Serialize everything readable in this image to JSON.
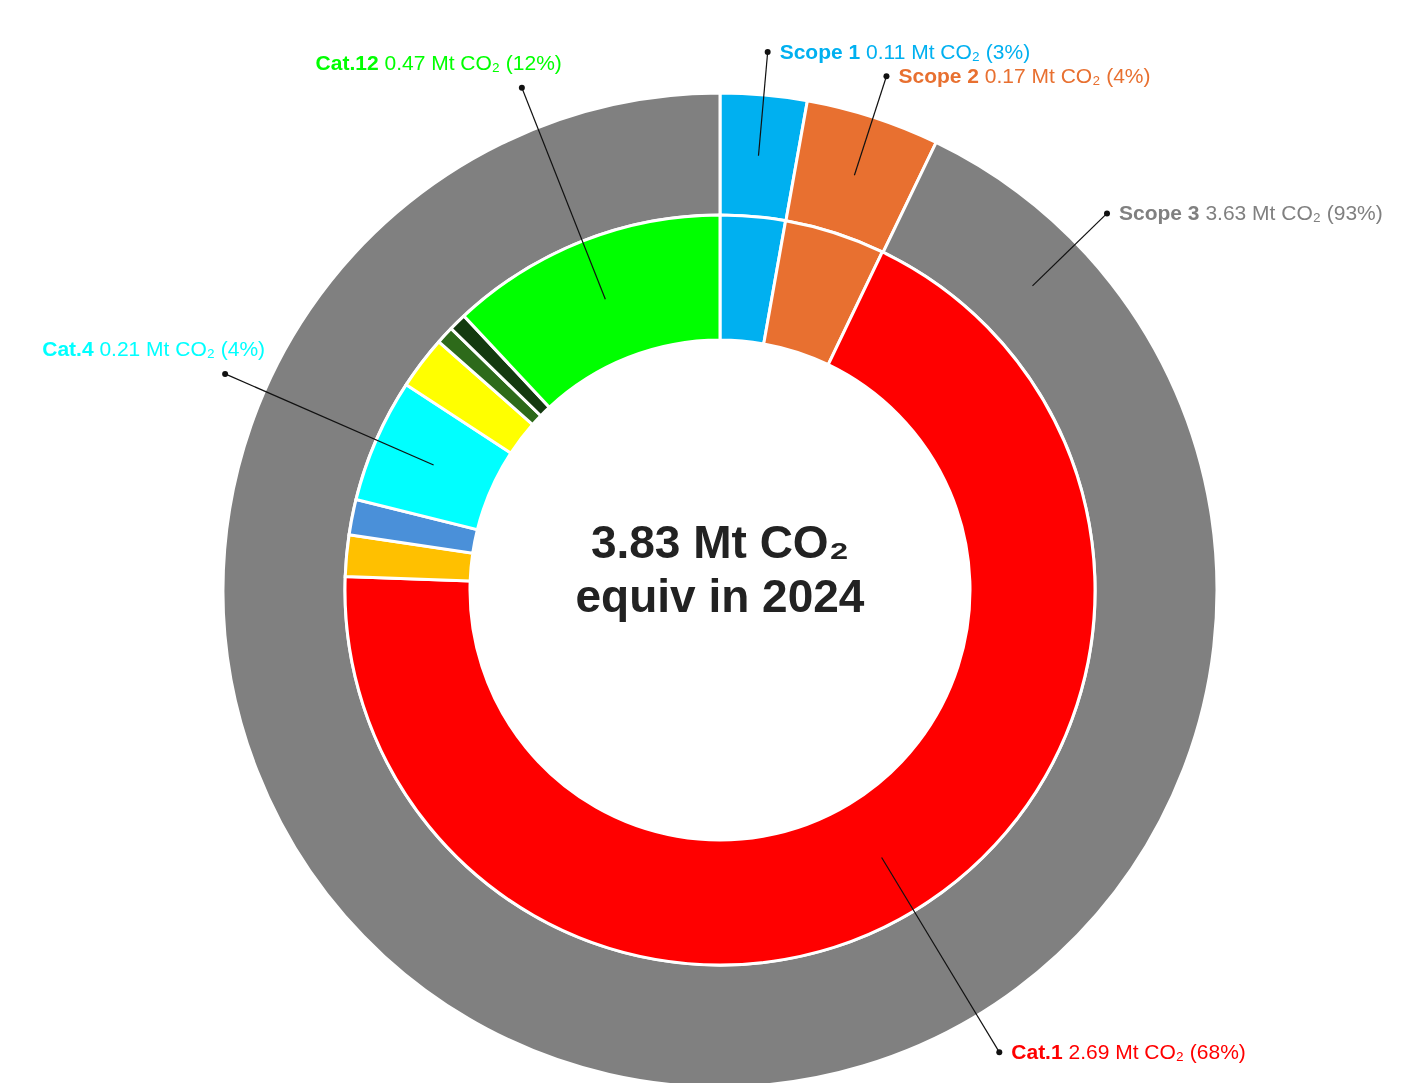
{
  "chart_data": [
    {
      "type": "donut",
      "categories": [
        "Scope 1",
        "Scope 2",
        "Scope 3"
      ],
      "values": [
        0.11,
        0.17,
        3.63
      ],
      "colors": [
        "#00b0f0",
        "#e87030",
        "#808080"
      ],
      "value_labels": [
        "0.11 Mt CO₂ (3%)",
        "0.17 Mt CO₂ (4%)",
        "3.63 Mt CO₂ (93%)"
      ],
      "legend": false
    },
    {
      "type": "donut",
      "title": "3.83 Mt CO₂ equiv in 2024",
      "categories": [
        null,
        null,
        "Cat.1",
        null,
        null,
        "Cat.4",
        null,
        null,
        null,
        "Cat.12"
      ],
      "values": [
        0.11,
        0.17,
        2.69,
        0.07,
        0.06,
        0.21,
        0.09,
        0.03,
        0.03,
        0.47
      ],
      "colors": [
        "#00b0f0",
        "#e87030",
        "#ff0000",
        "#ffc000",
        "#4a90d9",
        "#00ffff",
        "#ffff00",
        "#2d6a1a",
        "#143a10",
        "#00ff00"
      ],
      "value_labels": [
        null,
        null,
        "2.69 Mt CO₂ (68%)",
        null,
        null,
        "0.21 Mt CO₂ (4%)",
        null,
        null,
        null,
        "0.47 Mt CO₂ (12%)"
      ],
      "legend": false
    }
  ]
}
